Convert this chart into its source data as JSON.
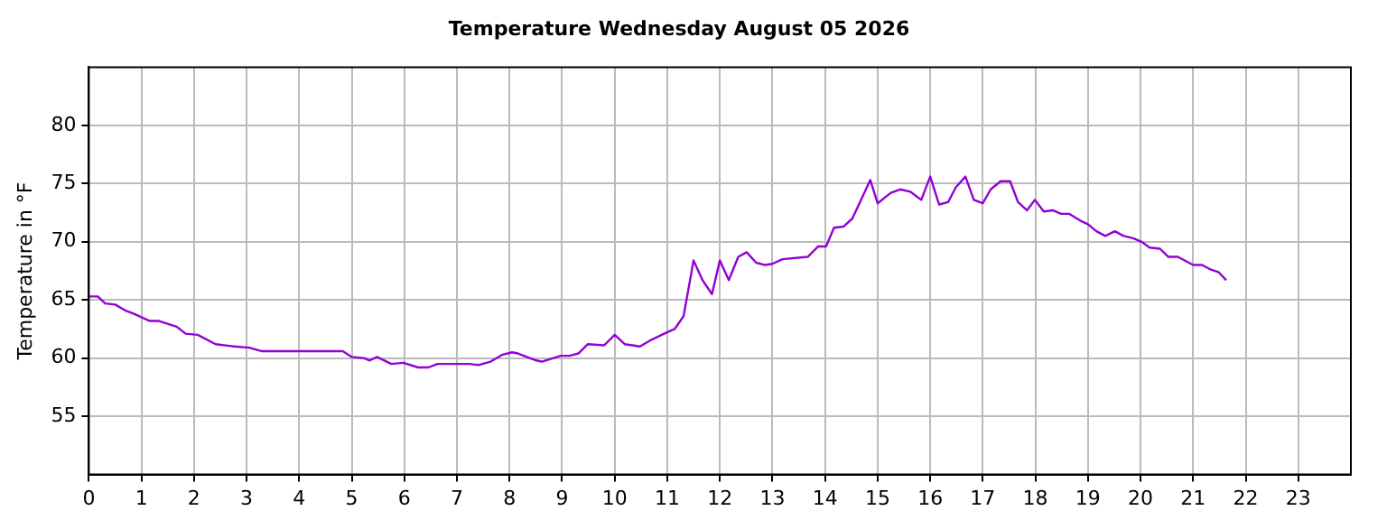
{
  "chart_data": {
    "type": "line",
    "title": "Temperature Wednesday August 05 2026",
    "ylabel": "Temperature in °F",
    "x": [
      0,
      0.17,
      0.31,
      0.5,
      0.69,
      0.86,
      1.15,
      1.32,
      1.67,
      1.84,
      2.07,
      2.41,
      2.76,
      3.05,
      3.28,
      4.83,
      5.0,
      5.23,
      5.34,
      5.48,
      5.75,
      5.98,
      6.26,
      6.46,
      6.63,
      7.24,
      7.41,
      7.64,
      7.87,
      8.05,
      8.16,
      8.51,
      8.62,
      8.97,
      9.14,
      9.31,
      9.49,
      9.8,
      10.0,
      10.19,
      10.48,
      10.71,
      10.94,
      11.14,
      11.31,
      11.5,
      11.67,
      11.85,
      12.0,
      12.17,
      12.35,
      12.51,
      12.69,
      12.86,
      13.0,
      13.19,
      13.67,
      13.87,
      14.02,
      14.17,
      14.35,
      14.52,
      14.86,
      15.0,
      15.25,
      15.43,
      15.62,
      15.83,
      16.0,
      16.17,
      16.34,
      16.49,
      16.67,
      16.83,
      17.0,
      17.15,
      17.34,
      17.52,
      17.67,
      17.84,
      17.99,
      18.16,
      18.33,
      18.49,
      18.64,
      18.86,
      19.0,
      19.16,
      19.33,
      19.51,
      19.68,
      19.86,
      20.02,
      20.17,
      20.37,
      20.53,
      20.71,
      21.0,
      21.17,
      21.34,
      21.48,
      21.63
    ],
    "series": [
      {
        "color": "#9400d3",
        "values": [
          65.3,
          65.3,
          64.7,
          64.6,
          64.1,
          63.8,
          63.2,
          63.2,
          62.7,
          62.1,
          62.0,
          61.2,
          61.0,
          60.9,
          60.6,
          60.6,
          60.1,
          60.0,
          59.8,
          60.1,
          59.5,
          59.6,
          59.2,
          59.2,
          59.5,
          59.5,
          59.4,
          59.7,
          60.3,
          60.5,
          60.4,
          59.8,
          59.7,
          60.2,
          60.2,
          60.4,
          61.2,
          61.1,
          62.0,
          61.2,
          61.0,
          61.6,
          62.1,
          62.5,
          63.6,
          68.4,
          66.7,
          65.5,
          68.4,
          66.7,
          68.7,
          69.1,
          68.2,
          68.0,
          68.1,
          68.5,
          68.7,
          69.6,
          69.6,
          71.2,
          71.3,
          72.0,
          75.3,
          73.3,
          74.2,
          74.5,
          74.3,
          73.6,
          75.6,
          73.2,
          73.4,
          74.7,
          75.6,
          73.6,
          73.3,
          74.5,
          75.2,
          75.2,
          73.4,
          72.7,
          73.6,
          72.6,
          72.7,
          72.4,
          72.4,
          71.8,
          71.5,
          70.9,
          70.5,
          70.9,
          70.5,
          70.3,
          70.0,
          69.5,
          69.4,
          68.7,
          68.7,
          68.0,
          68.0,
          67.6,
          67.4,
          66.7
        ]
      }
    ],
    "xlim": [
      0,
      24
    ],
    "xticks": [
      0,
      1,
      2,
      3,
      4,
      5,
      6,
      7,
      8,
      9,
      10,
      11,
      12,
      13,
      14,
      15,
      16,
      17,
      18,
      19,
      20,
      21,
      22,
      23
    ],
    "ylim": [
      50,
      85
    ],
    "yticks": [
      55,
      60,
      65,
      70,
      75,
      80
    ],
    "grid": true,
    "legend": false,
    "marker": "none",
    "line_style": "solid"
  }
}
